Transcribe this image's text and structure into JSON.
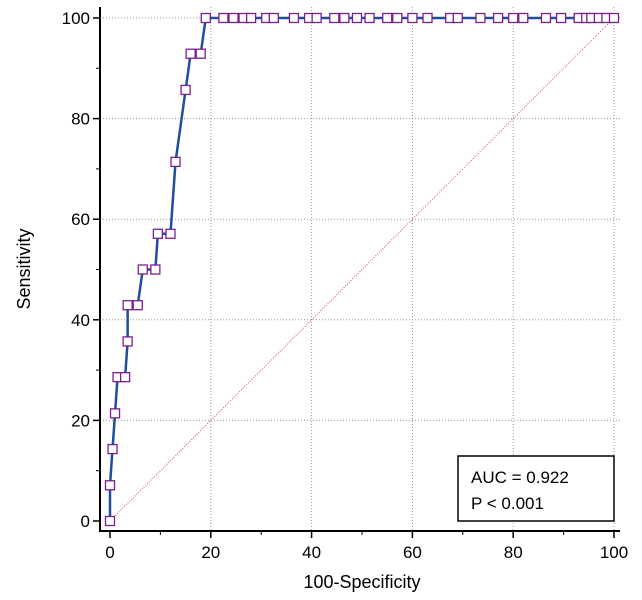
{
  "chart_data": {
    "type": "line",
    "title": "",
    "xlabel": "100-Specificity",
    "ylabel": "Sensitivity",
    "xlim": [
      0,
      100
    ],
    "ylim": [
      0,
      100
    ],
    "xticks": [
      "0",
      "20",
      "40",
      "60",
      "80",
      "100"
    ],
    "yticks": [
      "0",
      "20",
      "40",
      "60",
      "80",
      "100"
    ],
    "grid": true,
    "series": [
      {
        "color": "#1f4e9c",
        "marker": "square",
        "marker_color": "#7a1f8c",
        "points": [
          [
            0,
            0
          ],
          [
            0,
            7.1
          ],
          [
            0.5,
            14.3
          ],
          [
            1,
            21.4
          ],
          [
            1.5,
            28.6
          ],
          [
            3,
            28.6
          ],
          [
            3.5,
            35.7
          ],
          [
            3.5,
            42.9
          ],
          [
            5.5,
            42.9
          ],
          [
            6.5,
            50
          ],
          [
            9,
            50
          ],
          [
            9.5,
            57.1
          ],
          [
            12,
            57.1
          ],
          [
            13,
            71.4
          ],
          [
            15,
            85.7
          ],
          [
            16,
            92.9
          ],
          [
            18,
            92.9
          ],
          [
            19,
            100
          ],
          [
            22.5,
            100
          ],
          [
            24.5,
            100
          ],
          [
            26.5,
            100
          ],
          [
            28,
            100
          ],
          [
            31,
            100
          ],
          [
            32.5,
            100
          ],
          [
            36.5,
            100
          ],
          [
            39.5,
            100
          ],
          [
            41,
            100
          ],
          [
            44.5,
            100
          ],
          [
            46.5,
            100
          ],
          [
            49,
            100
          ],
          [
            51.5,
            100
          ],
          [
            55,
            100
          ],
          [
            57,
            100
          ],
          [
            60,
            100
          ],
          [
            63,
            100
          ],
          [
            67.5,
            100
          ],
          [
            69,
            100
          ],
          [
            73.5,
            100
          ],
          [
            77,
            100
          ],
          [
            80,
            100
          ],
          [
            82,
            100
          ],
          [
            86.5,
            100
          ],
          [
            89.5,
            100
          ],
          [
            93,
            100
          ],
          [
            94.5,
            100
          ],
          [
            95.5,
            100
          ],
          [
            97,
            100
          ],
          [
            98.5,
            100
          ],
          [
            100,
            100
          ]
        ]
      }
    ],
    "reference_line": {
      "from": [
        0,
        0
      ],
      "to": [
        100,
        100
      ],
      "color": "#d9534f",
      "style": "dotted"
    },
    "annotation": {
      "lines": [
        "AUC = 0.922",
        "P < 0.001"
      ],
      "placement": "bottom-right"
    }
  }
}
